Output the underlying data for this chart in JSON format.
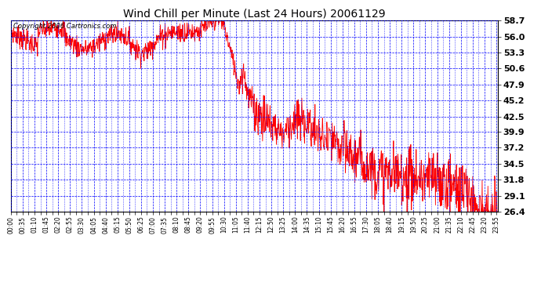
{
  "title": "Wind Chill per Minute (Last 24 Hours) 20061129",
  "copyright": "Copyright 2006 Cartronics.com",
  "background_color": "#ffffff",
  "plot_bg_color": "#ffffff",
  "grid_color": "#0000ff",
  "line_color": "#ff0000",
  "yticks": [
    26.4,
    29.1,
    31.8,
    34.5,
    37.2,
    39.9,
    42.5,
    45.2,
    47.9,
    50.6,
    53.3,
    56.0,
    58.7
  ],
  "ymin": 26.4,
  "ymax": 58.7,
  "xtick_labels": [
    "00:00",
    "00:35",
    "01:10",
    "01:45",
    "02:20",
    "02:55",
    "03:30",
    "04:05",
    "04:40",
    "05:15",
    "05:50",
    "06:25",
    "07:00",
    "07:35",
    "08:10",
    "08:45",
    "09:20",
    "09:55",
    "10:30",
    "11:05",
    "11:40",
    "12:15",
    "12:50",
    "13:25",
    "14:00",
    "14:35",
    "15:10",
    "15:45",
    "16:20",
    "16:55",
    "17:30",
    "18:05",
    "18:40",
    "19:15",
    "19:50",
    "20:25",
    "21:00",
    "21:35",
    "22:10",
    "22:45",
    "23:20",
    "23:55"
  ]
}
